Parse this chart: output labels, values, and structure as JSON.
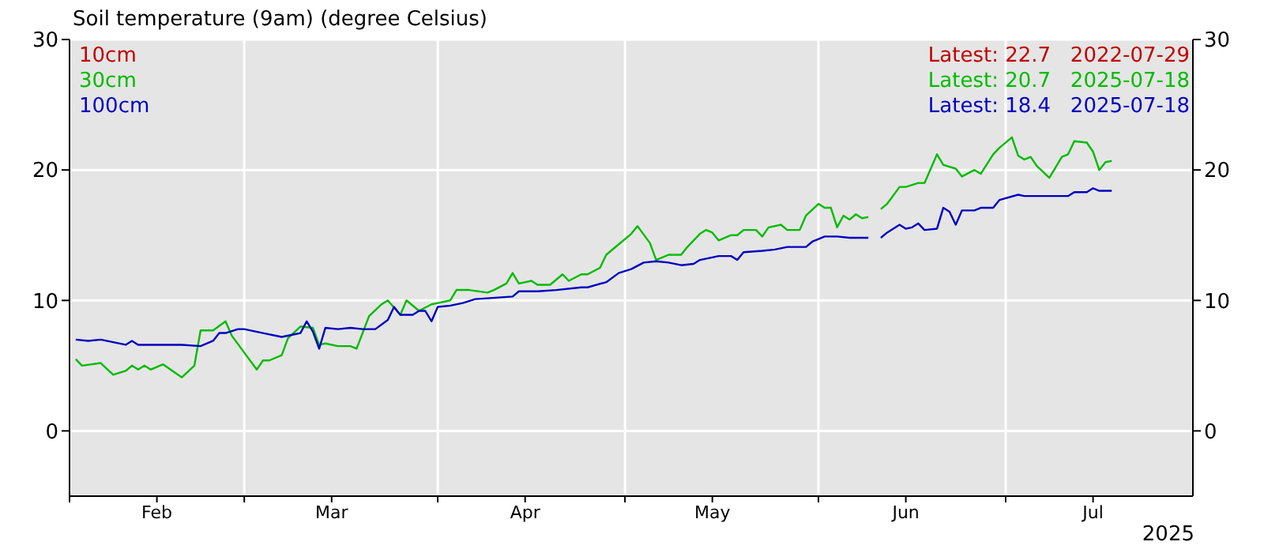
{
  "chart_data": {
    "type": "line",
    "title": "Soil temperature (9am) (degree Celsius)",
    "xlim": [
      "2025-02-01",
      "2025-07-31"
    ],
    "xticks": [
      {
        "value": "2025-02-01",
        "label": null
      },
      {
        "value": "2025-02-15",
        "label": "Feb"
      },
      {
        "value": "2025-03-01",
        "label": null
      },
      {
        "value": "2025-03-15",
        "label": "Mar"
      },
      {
        "value": "2025-04-01",
        "label": null
      },
      {
        "value": "2025-04-15",
        "label": "Apr"
      },
      {
        "value": "2025-05-01",
        "label": null
      },
      {
        "value": "2025-05-15",
        "label": "May"
      },
      {
        "value": "2025-06-01",
        "label": null
      },
      {
        "value": "2025-06-15",
        "label": "Jun"
      },
      {
        "value": "2025-07-01",
        "label": null
      },
      {
        "value": "2025-07-15",
        "label": "Jul"
      }
    ],
    "ylim": [
      -5,
      30
    ],
    "yticks": [
      0,
      10,
      20,
      30
    ],
    "y2lim": [
      -5,
      30
    ],
    "y2ticks": [
      0,
      10,
      20,
      30
    ],
    "grid": true,
    "legend": "top left",
    "marker": "none",
    "line_style": "solid",
    "series": [
      {
        "name": "10cm",
        "color": "#c00000"
      },
      {
        "name": "30cm",
        "color": "#00bb00",
        "x": [
          "2025-02-02",
          "2025-02-03",
          "2025-02-06",
          "2025-02-08",
          "2025-02-10",
          "2025-02-11",
          "2025-02-12",
          "2025-02-13",
          "2025-02-14",
          "2025-02-16",
          "2025-02-19",
          "2025-02-21",
          "2025-02-22",
          "2025-02-24",
          "2025-02-26",
          "2025-02-27",
          "2025-03-01",
          "2025-03-03",
          "2025-03-04",
          "2025-03-05",
          "2025-03-07",
          "2025-03-08",
          "2025-03-10",
          "2025-03-12",
          "2025-03-13",
          "2025-03-14",
          "2025-03-16",
          "2025-03-18",
          "2025-03-19",
          "2025-03-21",
          "2025-03-23",
          "2025-03-24",
          "2025-03-26",
          "2025-03-27",
          "2025-03-29",
          "2025-03-31",
          "2025-04-01",
          "2025-04-03",
          "2025-04-04",
          "2025-04-06",
          "2025-04-09",
          "2025-04-10",
          "2025-04-12",
          "2025-04-13",
          "2025-04-14",
          "2025-04-16",
          "2025-04-17",
          "2025-04-19",
          "2025-04-21",
          "2025-04-22",
          "2025-04-24",
          "2025-04-25",
          "2025-04-27",
          "2025-04-28",
          "2025-04-30",
          "2025-05-02",
          "2025-05-03",
          "2025-05-05",
          "2025-05-06",
          "2025-05-08",
          "2025-05-10",
          "2025-05-11",
          "2025-05-13",
          "2025-05-14",
          "2025-05-15",
          "2025-05-16",
          "2025-05-18",
          "2025-05-19",
          "2025-05-20",
          "2025-05-22",
          "2025-05-23",
          "2025-05-24",
          "2025-05-26",
          "2025-05-27",
          "2025-05-29",
          "2025-05-30",
          "2025-06-01",
          "2025-06-02",
          "2025-06-03",
          "2025-06-04",
          "2025-06-05",
          "2025-06-06",
          "2025-06-07",
          "2025-06-08",
          "2025-06-09",
          "2025-06-10",
          "2025-06-11",
          "2025-06-12",
          "2025-06-14",
          "2025-06-15",
          "2025-06-17",
          "2025-06-18",
          "2025-06-20",
          "2025-06-21",
          "2025-06-23",
          "2025-06-24",
          "2025-06-26",
          "2025-06-27",
          "2025-06-29",
          "2025-06-30",
          "2025-07-02",
          "2025-07-03",
          "2025-07-04",
          "2025-07-05",
          "2025-07-06",
          "2025-07-08",
          "2025-07-10",
          "2025-07-11",
          "2025-07-12",
          "2025-07-14",
          "2025-07-15",
          "2025-07-16",
          "2025-07-17",
          "2025-07-18"
        ],
        "values": [
          5.5,
          5.0,
          5.2,
          4.3,
          4.6,
          5.0,
          4.7,
          5.0,
          4.7,
          5.1,
          4.1,
          5.0,
          7.7,
          7.7,
          8.4,
          7.3,
          6.0,
          4.7,
          5.4,
          5.4,
          5.8,
          7.1,
          8.0,
          7.9,
          6.6,
          6.7,
          6.5,
          6.5,
          6.3,
          8.8,
          9.7,
          10.0,
          8.9,
          10.0,
          9.2,
          9.7,
          9.8,
          10.0,
          10.8,
          10.8,
          10.6,
          10.8,
          11.3,
          12.1,
          11.3,
          11.5,
          11.2,
          11.2,
          12.0,
          11.5,
          12.0,
          12.0,
          12.5,
          13.5,
          14.3,
          15.1,
          15.7,
          14.4,
          13.1,
          13.5,
          13.5,
          14.1,
          15.1,
          15.4,
          15.2,
          14.6,
          15.0,
          15.0,
          15.4,
          15.4,
          14.9,
          15.6,
          15.8,
          15.4,
          15.4,
          16.5,
          17.4,
          17.1,
          17.1,
          15.6,
          16.5,
          16.2,
          16.6,
          16.3,
          16.4,
          null,
          17.0,
          17.4,
          18.7,
          18.7,
          19.0,
          19.0,
          21.2,
          20.4,
          20.1,
          19.5,
          20.0,
          19.7,
          21.2,
          21.7,
          22.5,
          21.1,
          20.8,
          21.0,
          20.3,
          19.4,
          21.0,
          21.2,
          22.2,
          22.1,
          21.4,
          20.0,
          20.6,
          20.7
        ]
      },
      {
        "name": "100cm",
        "color": "#0000c0",
        "x": [
          "2025-02-02",
          "2025-02-04",
          "2025-02-06",
          "2025-02-08",
          "2025-02-10",
          "2025-02-11",
          "2025-02-12",
          "2025-02-19",
          "2025-02-22",
          "2025-02-24",
          "2025-02-25",
          "2025-02-26",
          "2025-02-28",
          "2025-03-01",
          "2025-03-04",
          "2025-03-07",
          "2025-03-09",
          "2025-03-10",
          "2025-03-11",
          "2025-03-12",
          "2025-03-13",
          "2025-03-14",
          "2025-03-16",
          "2025-03-18",
          "2025-03-20",
          "2025-03-22",
          "2025-03-24",
          "2025-03-25",
          "2025-03-26",
          "2025-03-28",
          "2025-03-29",
          "2025-03-30",
          "2025-03-31",
          "2025-04-01",
          "2025-04-03",
          "2025-04-05",
          "2025-04-07",
          "2025-04-13",
          "2025-04-14",
          "2025-04-17",
          "2025-04-20",
          "2025-04-24",
          "2025-04-25",
          "2025-04-28",
          "2025-04-30",
          "2025-05-02",
          "2025-05-04",
          "2025-05-06",
          "2025-05-08",
          "2025-05-10",
          "2025-05-12",
          "2025-05-13",
          "2025-05-16",
          "2025-05-18",
          "2025-05-19",
          "2025-05-20",
          "2025-05-23",
          "2025-05-25",
          "2025-05-27",
          "2025-05-30",
          "2025-05-31",
          "2025-06-02",
          "2025-06-04",
          "2025-06-06",
          "2025-06-09",
          "2025-06-10",
          "2025-06-11",
          "2025-06-12",
          "2025-06-14",
          "2025-06-15",
          "2025-06-16",
          "2025-06-17",
          "2025-06-18",
          "2025-06-20",
          "2025-06-21",
          "2025-06-22",
          "2025-06-23",
          "2025-06-24",
          "2025-06-26",
          "2025-06-27",
          "2025-06-29",
          "2025-06-30",
          "2025-07-03",
          "2025-07-04",
          "2025-07-06",
          "2025-07-11",
          "2025-07-12",
          "2025-07-14",
          "2025-07-15",
          "2025-07-16",
          "2025-07-18"
        ],
        "values": [
          7.0,
          6.9,
          7.0,
          6.8,
          6.6,
          6.9,
          6.6,
          6.6,
          6.5,
          6.9,
          7.5,
          7.5,
          7.8,
          7.8,
          7.5,
          7.2,
          7.4,
          7.5,
          8.4,
          7.6,
          6.3,
          7.9,
          7.8,
          7.9,
          7.8,
          7.8,
          8.5,
          9.5,
          8.9,
          8.9,
          9.2,
          9.2,
          8.4,
          9.5,
          9.6,
          9.8,
          10.1,
          10.3,
          10.7,
          10.7,
          10.8,
          11.0,
          11.0,
          11.4,
          12.1,
          12.4,
          12.9,
          13.0,
          12.9,
          12.7,
          12.8,
          13.1,
          13.4,
          13.4,
          13.1,
          13.7,
          13.8,
          13.9,
          14.1,
          14.1,
          14.5,
          14.9,
          14.9,
          14.8,
          14.8,
          null,
          14.8,
          15.2,
          15.8,
          15.5,
          15.6,
          15.9,
          15.4,
          15.5,
          17.1,
          16.8,
          15.8,
          16.9,
          16.9,
          17.1,
          17.1,
          17.7,
          18.1,
          18.0,
          18.0,
          18.0,
          18.3,
          18.3,
          18.6,
          18.4,
          18.4
        ]
      }
    ],
    "annotations": [
      "Latest: 22.7   2022-07-29",
      "Latest: 20.7   2025-07-18",
      "Latest: 18.4   2025-07-18",
      "2025"
    ]
  }
}
